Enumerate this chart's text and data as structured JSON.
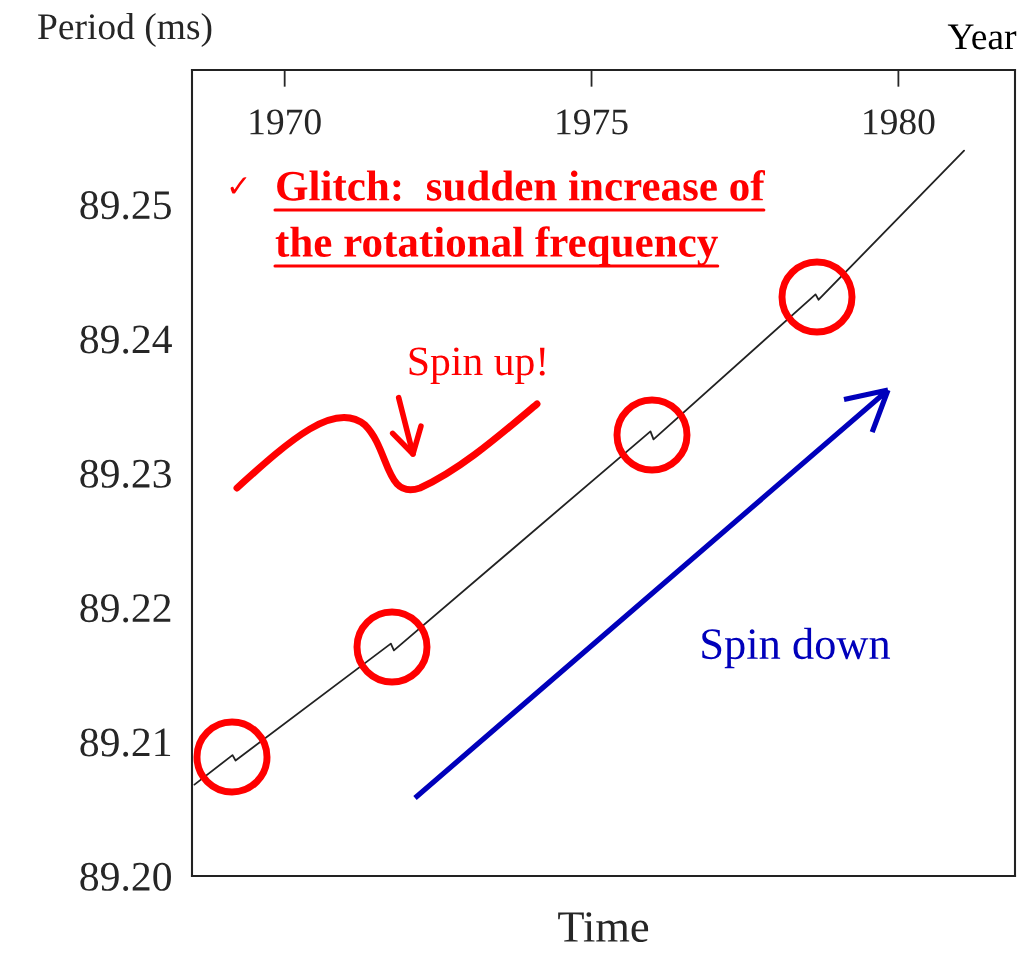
{
  "chart_data": {
    "type": "line",
    "ylabel": "Period (ms)",
    "xlabel": "Time",
    "series": [
      {
        "color": "#222222",
        "x": [
          1968.53,
          1969.15,
          1969.2,
          1971.73,
          1971.78,
          1975.96,
          1976.01,
          1978.65,
          1978.7,
          1981.07
        ],
        "values": [
          89.2068,
          89.209,
          89.2086,
          89.2173,
          89.2168,
          89.2331,
          89.2325,
          89.2433,
          89.2429,
          89.254
        ]
      }
    ],
    "xlim": [
      1968.49,
      1981.9
    ],
    "xticks": [
      1970,
      1975,
      1980
    ],
    "ylim": [
      89.2,
      89.26
    ],
    "yticks": [
      {
        "value": 89.2,
        "label": "89.20"
      },
      {
        "value": 89.21,
        "label": "89.21"
      },
      {
        "value": 89.22,
        "label": "89.22"
      },
      {
        "value": 89.23,
        "label": "89.23"
      },
      {
        "value": 89.24,
        "label": "89.24"
      },
      {
        "value": 89.25,
        "label": "89.25"
      }
    ],
    "annotations": [
      "Year",
      "✓",
      "Glitch:  sudden increase of\nthe rotational frequency",
      "Spin up!",
      "Spin down"
    ],
    "grid": false,
    "legend": false,
    "marker": "none",
    "line_style": "solid"
  }
}
